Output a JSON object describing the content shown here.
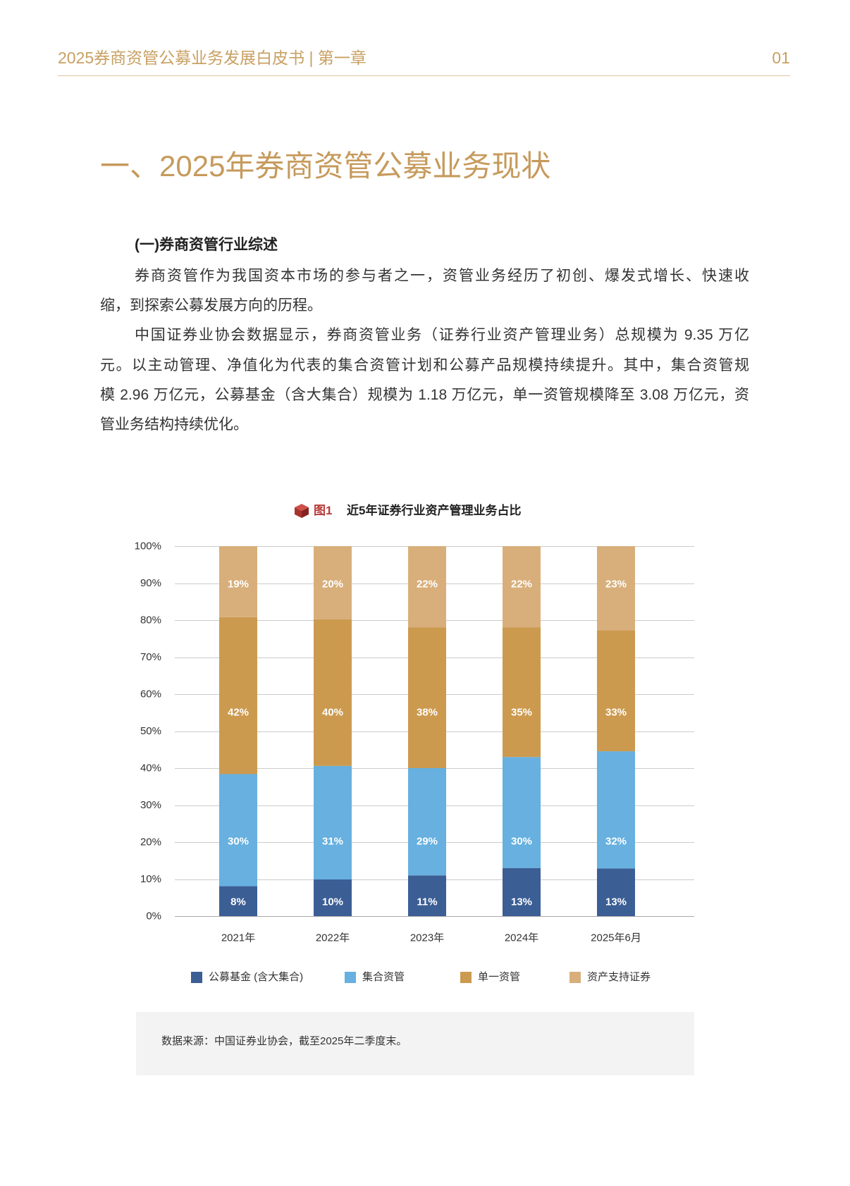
{
  "header": {
    "title": "2025券商资管公募业务发展白皮书 | 第一章",
    "page_number": "01"
  },
  "section": {
    "title": "一、2025年券商资管公募业务现状",
    "subheading": "(一)券商资管行业综述",
    "paragraphs": [
      {
        "lines": [
          "券商资管作为我国资本市场的参与者之一，资管业务经历了初创、爆发式增长、快速收",
          "缩，到探索公募发展方向的历程。"
        ]
      },
      {
        "lines": [
          "中国证券业协会数据显示，券商资管业务（证券行业资产管理业务）总规模为 9.35 万亿",
          "元。以主动管理、净值化为代表的集合资管计划和公募产品规模持续提升。其中，集合资管规",
          "模 2.96 万亿元，公募基金（含大集合）规模为 1.18 万亿元，单一资管规模降至 3.08 万亿元，资",
          "管业务结构持续优化。"
        ]
      }
    ]
  },
  "figure": {
    "icon": "cube-icon",
    "label": "图1",
    "source": "数据来源：中国证券业协会，截至2025年二季度末。"
  },
  "colors": {
    "header_gold": "#c8a063",
    "accent_gold": "#c69a5c",
    "figure_red": "#b83b3a",
    "body_text": "#333333",
    "source_box_bg": "#f3f3f3"
  },
  "chart_data": {
    "type": "bar",
    "stacked": "percent",
    "title": "近5年证券行业资产管理业务占比",
    "categories": [
      "2021年",
      "2022年",
      "2023年",
      "2024年",
      "2025年6月"
    ],
    "series": [
      {
        "name": "公募基金 (含大集合)",
        "values": [
          8,
          10,
          11,
          13,
          13
        ],
        "color": "#3b5e95"
      },
      {
        "name": "集合资管",
        "values": [
          30,
          31,
          29,
          30,
          32
        ],
        "color": "#67b0df"
      },
      {
        "name": "单一资管",
        "values": [
          42,
          40,
          38,
          35,
          33
        ],
        "color": "#cc9a4f"
      },
      {
        "name": "资产支持证券",
        "values": [
          19,
          20,
          22,
          22,
          23
        ],
        "color": "#d8af7b"
      }
    ],
    "y_ticks": [
      0,
      10,
      20,
      30,
      40,
      50,
      60,
      70,
      80,
      90,
      100
    ],
    "y_unit": "%",
    "ylim": [
      0,
      100
    ],
    "grid": true,
    "data_labels": true,
    "legend_position": "bottom"
  }
}
